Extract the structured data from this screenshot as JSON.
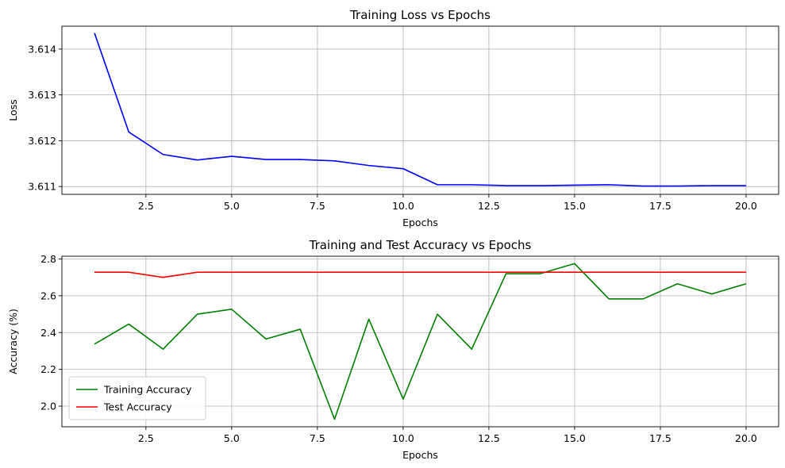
{
  "chart_data": [
    {
      "type": "line",
      "title": "Training Loss vs Epochs",
      "xlabel": "Epochs",
      "ylabel": "Loss",
      "xlim": [
        0.05,
        20.95
      ],
      "ylim": [
        3.61083,
        3.6145
      ],
      "xticks": [
        2.5,
        5.0,
        7.5,
        10.0,
        12.5,
        15.0,
        17.5,
        20.0
      ],
      "xtick_labels": [
        "2.5",
        "5.0",
        "7.5",
        "10.0",
        "12.5",
        "15.0",
        "17.5",
        "20.0"
      ],
      "yticks": [
        3.611,
        3.612,
        3.613,
        3.614
      ],
      "ytick_labels": [
        "3.611",
        "3.612",
        "3.613",
        "3.614"
      ],
      "grid": true,
      "x": [
        1,
        2,
        3,
        4,
        5,
        6,
        7,
        8,
        9,
        10,
        11,
        12,
        13,
        14,
        15,
        16,
        17,
        18,
        19,
        20
      ],
      "series": [
        {
          "color": "#0000ff",
          "values": [
            3.61435,
            3.61219,
            3.6117,
            3.61158,
            3.61166,
            3.61159,
            3.61159,
            3.61156,
            3.61146,
            3.61139,
            3.61104,
            3.61104,
            3.61102,
            3.61102,
            3.61103,
            3.61104,
            3.61101,
            3.61101,
            3.61102,
            3.61102
          ]
        }
      ]
    },
    {
      "type": "line",
      "title": "Training and Test Accuracy vs Epochs",
      "xlabel": "Epochs",
      "ylabel": "Accuracy (%)",
      "xlim": [
        0.05,
        20.95
      ],
      "ylim": [
        1.888,
        2.815
      ],
      "xticks": [
        2.5,
        5.0,
        7.5,
        10.0,
        12.5,
        15.0,
        17.5,
        20.0
      ],
      "xtick_labels": [
        "2.5",
        "5.0",
        "7.5",
        "10.0",
        "12.5",
        "15.0",
        "17.5",
        "20.0"
      ],
      "yticks": [
        2.0,
        2.2,
        2.4,
        2.6,
        2.8
      ],
      "ytick_labels": [
        "2.0",
        "2.2",
        "2.4",
        "2.6",
        "2.8"
      ],
      "grid": true,
      "legend_position": "lower-left",
      "x": [
        1,
        2,
        3,
        4,
        5,
        6,
        7,
        8,
        9,
        10,
        11,
        12,
        13,
        14,
        15,
        16,
        17,
        18,
        19,
        20
      ],
      "series": [
        {
          "name": "Training Accuracy",
          "color": "#008000",
          "values": [
            2.337,
            2.446,
            2.31,
            2.5,
            2.527,
            2.365,
            2.418,
            1.929,
            2.473,
            2.038,
            2.5,
            2.31,
            2.72,
            2.72,
            2.775,
            2.583,
            2.583,
            2.665,
            2.61,
            2.665
          ]
        },
        {
          "name": "Test Accuracy",
          "color": "#ff0000",
          "values": [
            2.728,
            2.728,
            2.7,
            2.728,
            2.728,
            2.728,
            2.728,
            2.728,
            2.728,
            2.728,
            2.728,
            2.728,
            2.728,
            2.728,
            2.728,
            2.728,
            2.728,
            2.728,
            2.728,
            2.728
          ]
        }
      ]
    }
  ]
}
